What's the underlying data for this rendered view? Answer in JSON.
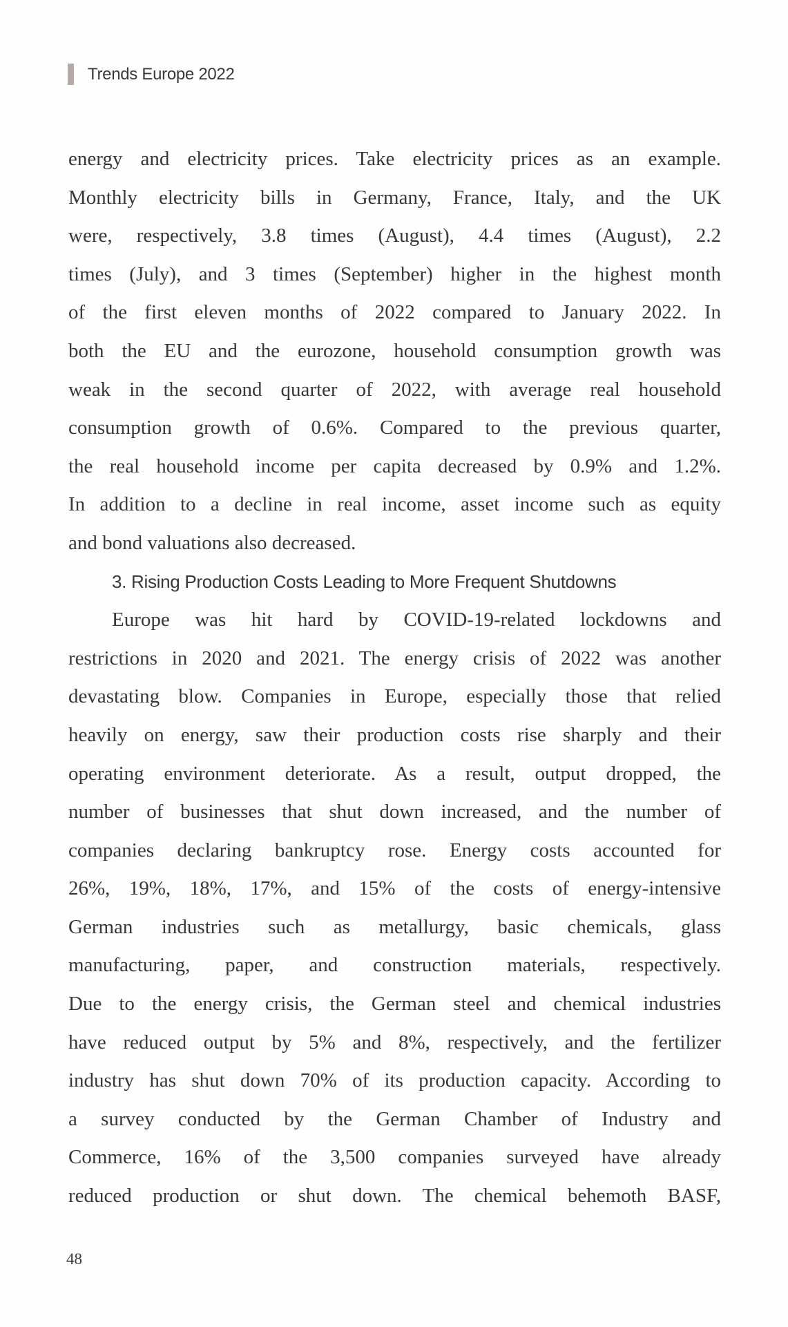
{
  "running_head": "Trends Europe 2022",
  "page_number": "48",
  "lines": [
    {
      "text": "energy and electricity prices. Take electricity prices as an example.",
      "type": "body"
    },
    {
      "text": "Monthly electricity bills in Germany, France, Italy, and the UK",
      "type": "body"
    },
    {
      "text": "were, respectively, 3.8 times (August), 4.4 times (August), 2.2",
      "type": "body"
    },
    {
      "text": "times (July), and 3 times (September) higher in the highest month",
      "type": "body"
    },
    {
      "text": "of the first eleven months of 2022 compared to January 2022. In",
      "type": "body"
    },
    {
      "text": "both the EU and the eurozone, household consumption growth was",
      "type": "body"
    },
    {
      "text": "weak in the second quarter of 2022, with average real household",
      "type": "body"
    },
    {
      "text": "consumption growth of 0.6%. Compared to the previous quarter,",
      "type": "body"
    },
    {
      "text": "the real household income per capita decreased by 0.9% and 1.2%.",
      "type": "body"
    },
    {
      "text": "In addition to a decline in real income, asset income such as equity",
      "type": "body"
    },
    {
      "text": "and bond valuations also decreased.",
      "type": "last"
    },
    {
      "text": "3. Rising Production Costs Leading to More Frequent Shutdowns",
      "type": "heading"
    },
    {
      "text": "Europe was hit hard by COVID-19-related lockdowns and",
      "type": "indent"
    },
    {
      "text": "restrictions in 2020 and 2021. The energy crisis of 2022 was another",
      "type": "body"
    },
    {
      "text": "devastating blow. Companies in Europe, especially those that relied",
      "type": "body"
    },
    {
      "text": "heavily on energy, saw their production costs rise sharply and their",
      "type": "body"
    },
    {
      "text": "operating environment deteriorate. As a result, output dropped, the",
      "type": "body"
    },
    {
      "text": "number of businesses that shut down increased, and the number of",
      "type": "body"
    },
    {
      "text": "companies declaring bankruptcy rose. Energy costs accounted for",
      "type": "body"
    },
    {
      "text": "26%, 19%, 18%, 17%, and 15% of the costs of energy-intensive",
      "type": "body"
    },
    {
      "text": "German industries such as metallurgy, basic chemicals, glass",
      "type": "body"
    },
    {
      "text": "manufacturing, paper, and construction materials, respectively.",
      "type": "body"
    },
    {
      "text": "Due to the energy crisis, the German steel and chemical industries",
      "type": "body"
    },
    {
      "text": "have reduced output by 5% and 8%, respectively, and the fertilizer",
      "type": "body"
    },
    {
      "text": "industry has shut down 70% of its production capacity. According to",
      "type": "body"
    },
    {
      "text": "a survey conducted by the German Chamber of Industry and",
      "type": "body"
    },
    {
      "text": "Commerce, 16% of the 3,500 companies surveyed have already",
      "type": "body"
    },
    {
      "text": "reduced production or shut down. The chemical behemoth BASF,",
      "type": "body"
    }
  ]
}
